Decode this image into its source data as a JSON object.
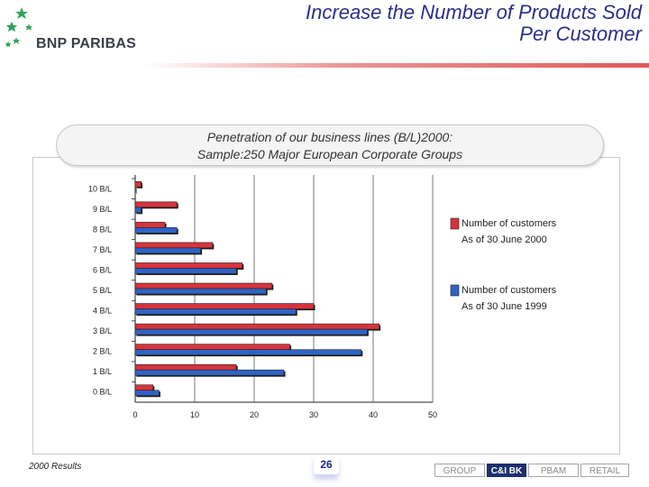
{
  "header": {
    "brand": "BNP PARIBAS",
    "title_line1": "Increase the Number of Products Sold",
    "title_line2": "Per Customer"
  },
  "subtitle": {
    "line1": "Penetration of our business lines (B/L)2000:",
    "line2": "Sample:250 Major European Corporate Groups"
  },
  "chart_data": {
    "type": "bar",
    "orientation": "horizontal",
    "categories": [
      "10 B/L",
      "9 B/L",
      "8 B/L",
      "7 B/L",
      "6 B/L",
      "5 B/L",
      "4 B/L",
      "3 B/L",
      "2 B/L",
      "1 B/L",
      "0 B/L"
    ],
    "series": [
      {
        "name": "Number of customers As of 30 June 2000",
        "color": "#d8333c",
        "values": [
          1,
          7,
          5,
          13,
          18,
          23,
          30,
          41,
          26,
          17,
          3
        ]
      },
      {
        "name": "Number of customers As of 30 June 1999",
        "color": "#2f63c6",
        "values": [
          0,
          1,
          7,
          11,
          17,
          22,
          27,
          39,
          38,
          25,
          4
        ]
      }
    ],
    "xlim": [
      0,
      50
    ],
    "xticks": [
      "0",
      "10",
      "20",
      "30",
      "40",
      "50"
    ],
    "grid": true,
    "legend": [
      {
        "line1": "Number of customers",
        "line2": "As of 30 June 2000"
      },
      {
        "line1": "Number of customers",
        "line2": "As of 30 June 1999"
      }
    ],
    "legend_position": "right"
  },
  "footer": {
    "left": "2000 Results",
    "page": "26",
    "nav": [
      {
        "label": "GROUP",
        "active": false
      },
      {
        "label": "C&I BK",
        "active": true
      },
      {
        "label": "PBAM",
        "active": false
      },
      {
        "label": "RETAIL",
        "active": false
      }
    ]
  }
}
